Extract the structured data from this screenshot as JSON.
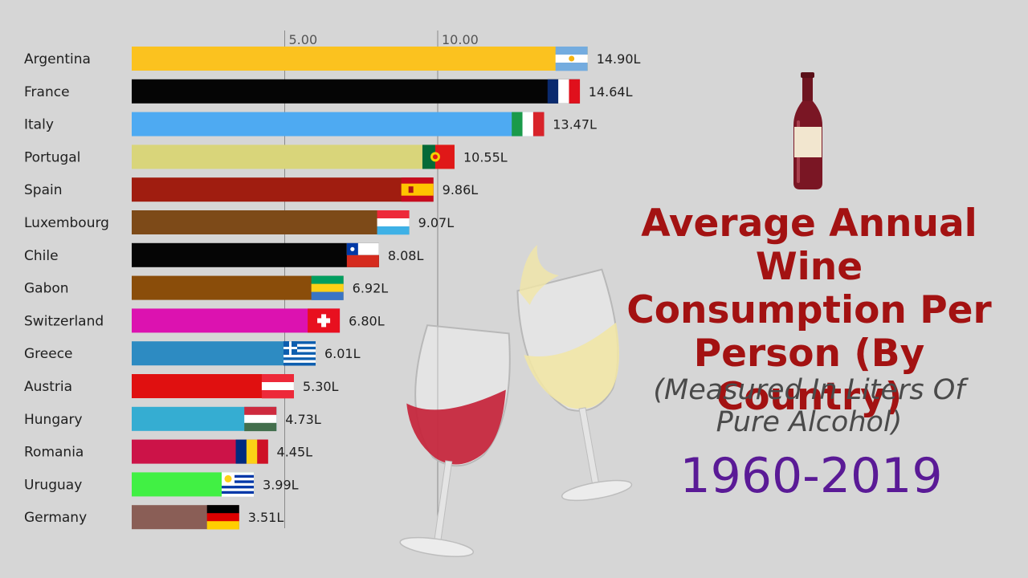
{
  "title": "Average Annual Wine Consumption Per Person (By Country)",
  "subtitle": "(Measured In Liters Of Pure Alcohol)",
  "year_range": "1960-2019",
  "colors": {
    "title": "#a31212",
    "year": "#5a1a96",
    "background": "#d6d6d6"
  },
  "icons": [
    "wine-bottle-icon",
    "wine-glasses-icon"
  ],
  "chart_data": {
    "type": "bar",
    "orientation": "horizontal",
    "unit_suffix": "L",
    "xlim": [
      0,
      15
    ],
    "xticks": [
      5,
      10
    ],
    "xtick_labels": [
      "5.00",
      "10.00"
    ],
    "grid": true,
    "legend": "none",
    "categories": [
      "Argentina",
      "France",
      "Italy",
      "Portugal",
      "Spain",
      "Luxembourg",
      "Chile",
      "Gabon",
      "Switzerland",
      "Greece",
      "Austria",
      "Hungary",
      "Romania",
      "Uruguay",
      "Germany"
    ],
    "values": [
      14.9,
      14.64,
      13.47,
      10.55,
      9.86,
      9.07,
      8.08,
      6.92,
      6.8,
      6.01,
      5.3,
      4.73,
      4.45,
      3.99,
      3.51
    ],
    "value_labels": [
      "14.90L",
      "14.64L",
      "13.47L",
      "10.55L",
      "9.86L",
      "9.07L",
      "8.08L",
      "6.92L",
      "6.80L",
      "6.01L",
      "5.30L",
      "4.73L",
      "4.45L",
      "3.99L",
      "3.51L"
    ],
    "bar_colors": [
      "#fbc21f",
      "#050505",
      "#4eaaf2",
      "#d9d57a",
      "#a01d10",
      "#7d4a18",
      "#050505",
      "#8a4d0a",
      "#dc12b0",
      "#2d8bc2",
      "#e01010",
      "#35add2",
      "#cc1348",
      "#41f044",
      "#8a5e56"
    ],
    "flags": [
      "argentina-flag-icon",
      "france-flag-icon",
      "italy-flag-icon",
      "portugal-flag-icon",
      "spain-flag-icon",
      "luxembourg-flag-icon",
      "chile-flag-icon",
      "gabon-flag-icon",
      "switzerland-flag-icon",
      "greece-flag-icon",
      "austria-flag-icon",
      "hungary-flag-icon",
      "romania-flag-icon",
      "uruguay-flag-icon",
      "germany-flag-icon"
    ]
  }
}
